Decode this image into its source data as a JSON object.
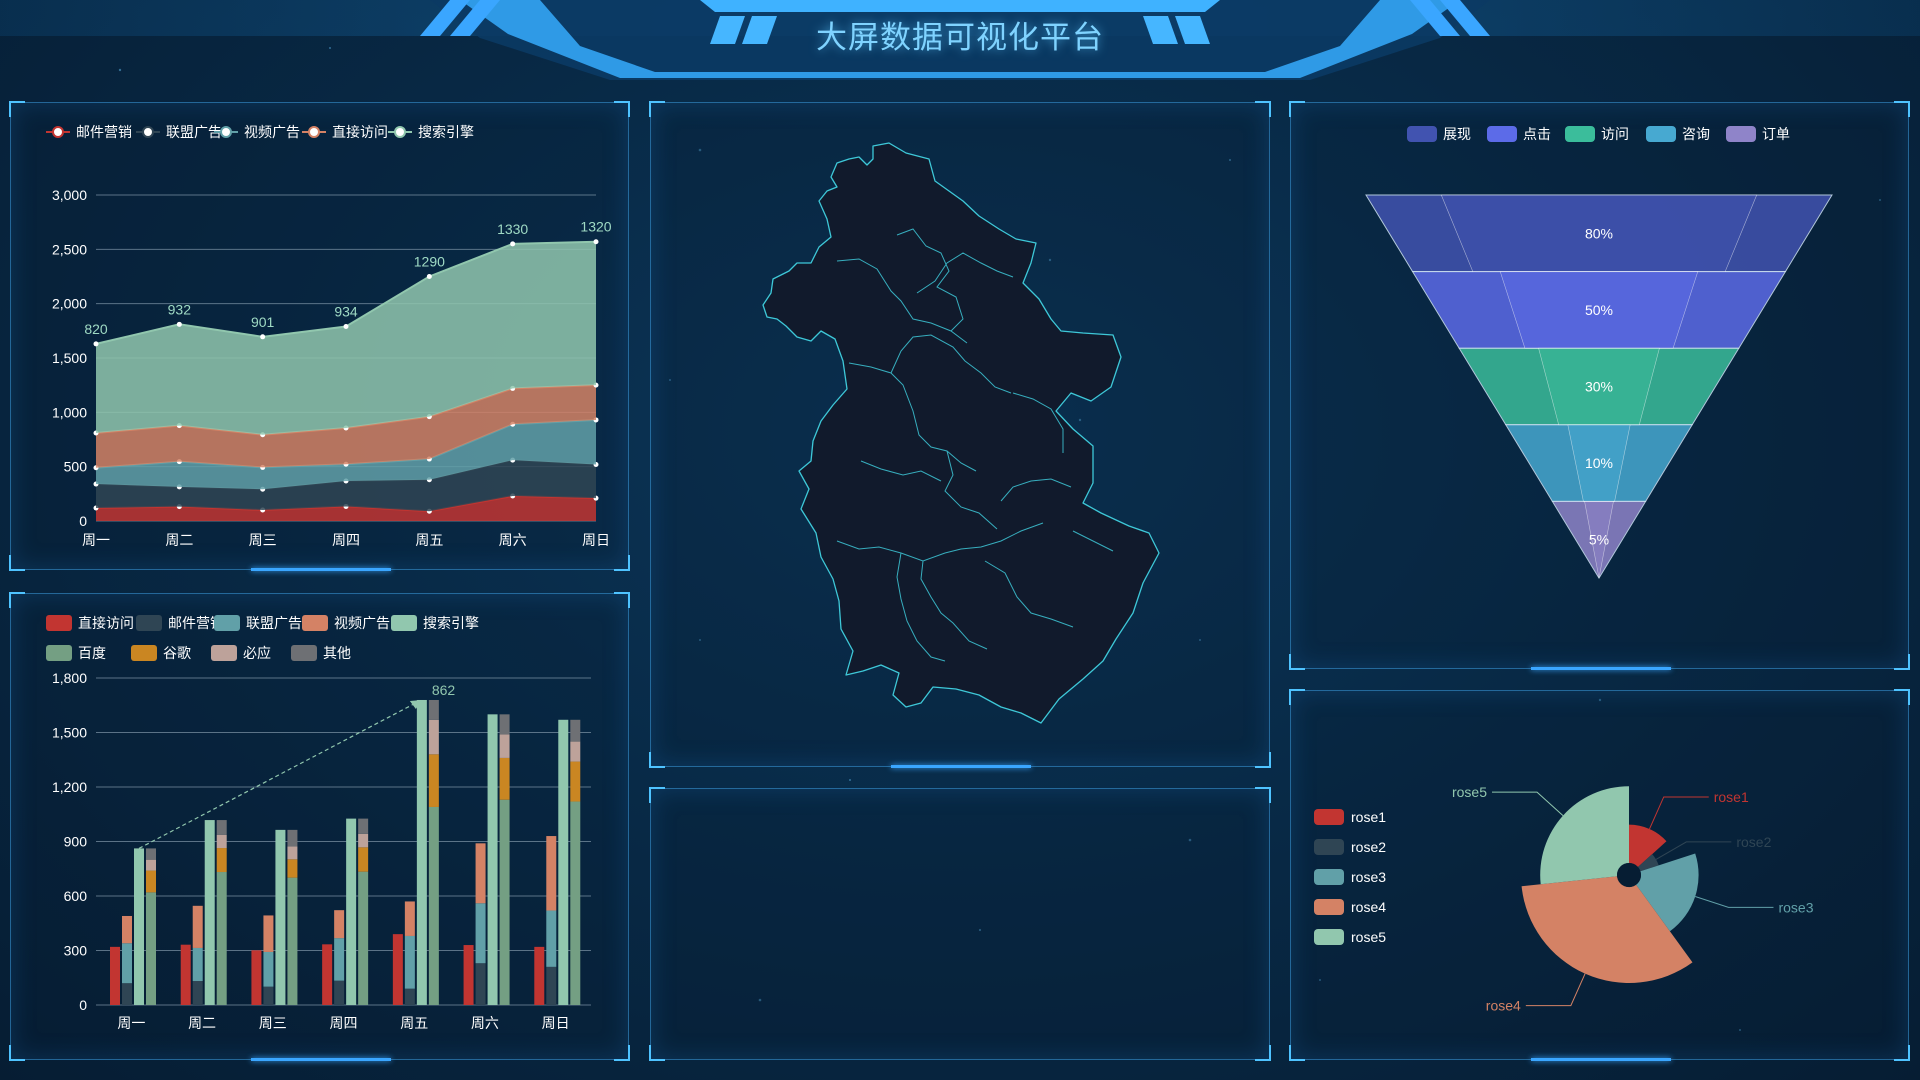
{
  "header": {
    "title": "大屏数据可视化平台"
  },
  "colors": {
    "red": "#c23531",
    "dark": "#2f4554",
    "teal": "#61a0a8",
    "orange": "#d48265",
    "green": "#91c7ae",
    "baidu": "#749f83",
    "google": "#ca8622",
    "bing": "#bda29a",
    "other": "#6e7074",
    "funnel": [
      "#4153b0",
      "#5c6be8",
      "#3bbd9b",
      "#47a9d1",
      "#8f84c9"
    ]
  },
  "line_chart": {
    "legend": [
      "邮件营销",
      "联盟广告",
      "视频广告",
      "直接访问",
      "搜索引擎"
    ],
    "chart_data": {
      "type": "area",
      "stacked": true,
      "categories": [
        "周一",
        "周二",
        "周三",
        "周四",
        "周五",
        "周六",
        "周日"
      ],
      "series": [
        {
          "name": "邮件营销",
          "values": [
            120,
            132,
            101,
            134,
            90,
            230,
            210
          ]
        },
        {
          "name": "联盟广告",
          "values": [
            220,
            182,
            191,
            234,
            290,
            330,
            310
          ]
        },
        {
          "name": "视频广告",
          "values": [
            150,
            232,
            201,
            154,
            190,
            330,
            410
          ]
        },
        {
          "name": "直接访问",
          "values": [
            320,
            332,
            301,
            334,
            390,
            330,
            320
          ]
        },
        {
          "name": "搜索引擎",
          "values": [
            820,
            932,
            901,
            934,
            1290,
            1330,
            1320
          ]
        }
      ],
      "ylim": [
        0,
        3000
      ],
      "yticks": [
        "0",
        "500",
        "1,000",
        "1,500",
        "2,000",
        "2,500",
        "3,000"
      ],
      "grid": true,
      "legend_position": "top"
    }
  },
  "bar_chart": {
    "legend_row1": [
      "直接访问",
      "邮件营销",
      "联盟广告",
      "视频广告",
      "搜索引擎"
    ],
    "legend_row2": [
      "百度",
      "谷歌",
      "必应",
      "其他"
    ],
    "annotation": "862",
    "chart_data": {
      "type": "bar",
      "categories": [
        "周一",
        "周二",
        "周三",
        "周四",
        "周五",
        "周六",
        "周日"
      ],
      "series": [
        {
          "name": "直接访问",
          "values": [
            320,
            332,
            301,
            334,
            390,
            330,
            320
          ]
        },
        {
          "name": "邮件营销",
          "stack": "广告",
          "values": [
            120,
            132,
            101,
            134,
            90,
            230,
            210
          ]
        },
        {
          "name": "联盟广告",
          "stack": "广告",
          "values": [
            220,
            182,
            191,
            234,
            290,
            330,
            310
          ]
        },
        {
          "name": "视频广告",
          "stack": "广告",
          "values": [
            150,
            232,
            201,
            154,
            190,
            330,
            410
          ]
        },
        {
          "name": "搜索引擎",
          "values": [
            862,
            1018,
            964,
            1026,
            1679,
            1600,
            1570
          ]
        },
        {
          "name": "百度",
          "stack": "搜索引擎",
          "values": [
            620,
            732,
            701,
            734,
            1090,
            1130,
            1120
          ]
        },
        {
          "name": "谷歌",
          "stack": "搜索引擎",
          "values": [
            120,
            132,
            101,
            134,
            290,
            230,
            220
          ]
        },
        {
          "name": "必应",
          "stack": "搜索引擎",
          "values": [
            60,
            72,
            71,
            74,
            190,
            130,
            110
          ]
        },
        {
          "name": "其他",
          "stack": "搜索引擎",
          "values": [
            62,
            82,
            91,
            84,
            109,
            110,
            120
          ]
        }
      ],
      "ylim": [
        0,
        1800
      ],
      "yticks": [
        "0",
        "300",
        "600",
        "900",
        "1,200",
        "1,500",
        "1,800"
      ],
      "grid": true,
      "legend_position": "top"
    }
  },
  "funnel_chart": {
    "legend": [
      "展现",
      "点击",
      "访问",
      "咨询",
      "订单"
    ],
    "chart_data": {
      "type": "funnel",
      "labels": [
        "80%",
        "50%",
        "30%",
        "10%",
        "5%"
      ],
      "values": [
        80,
        50,
        30,
        10,
        5
      ]
    }
  },
  "rose_chart": {
    "legend": [
      "rose1",
      "rose2",
      "rose3",
      "rose4",
      "rose5"
    ],
    "chart_data": {
      "type": "pie",
      "rose": true,
      "categories": [
        "rose1",
        "rose2",
        "rose3",
        "rose4",
        "rose5"
      ],
      "values": [
        10,
        5,
        15,
        25,
        20
      ]
    }
  }
}
